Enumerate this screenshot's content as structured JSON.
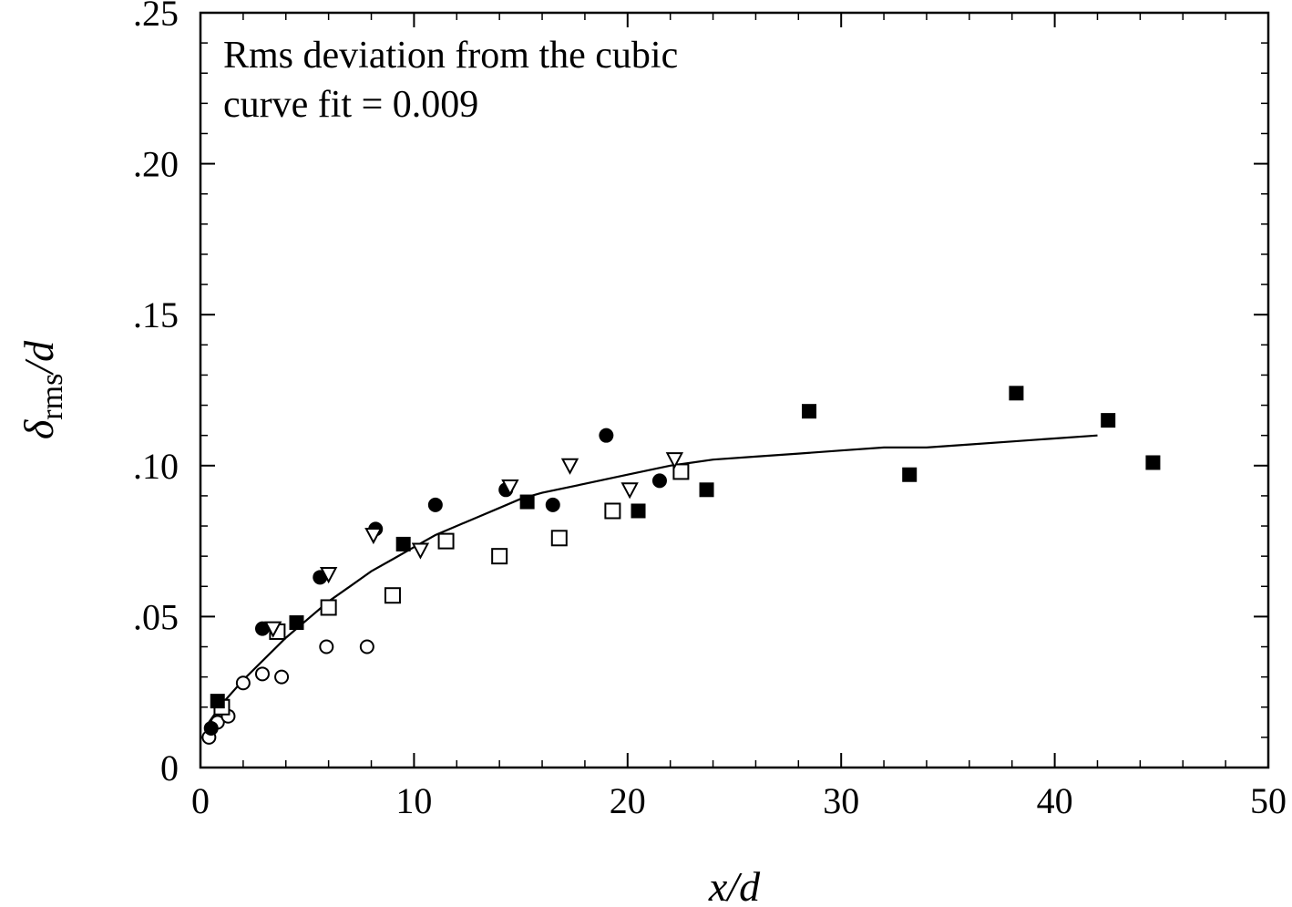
{
  "chart_data": {
    "type": "scatter",
    "annotation": [
      "Rms deviation from the cubic",
      "curve fit = 0.009"
    ],
    "xlabel": "x/d",
    "ylabel": {
      "symbol": "δ",
      "subscript": "rms",
      "suffix": "/d"
    },
    "xlim": [
      0,
      50
    ],
    "ylim": [
      0,
      0.25
    ],
    "xticks": [
      0,
      10,
      20,
      30,
      40,
      50
    ],
    "xtick_labels": [
      "0",
      "10",
      "20",
      "30",
      "40",
      "50"
    ],
    "yticks": [
      0,
      0.05,
      0.1,
      0.15,
      0.2,
      0.25
    ],
    "ytick_labels": [
      "0",
      ".05",
      ".10",
      ".15",
      ".20",
      ".25"
    ],
    "grid": false,
    "series": [
      {
        "marker": "open-circle",
        "points": [
          [
            0.4,
            0.01
          ],
          [
            0.8,
            0.015
          ],
          [
            1.3,
            0.017
          ],
          [
            2.0,
            0.028
          ],
          [
            2.9,
            0.031
          ],
          [
            3.8,
            0.03
          ],
          [
            5.9,
            0.04
          ],
          [
            7.8,
            0.04
          ]
        ]
      },
      {
        "marker": "filled-circle",
        "points": [
          [
            0.5,
            0.013
          ],
          [
            2.9,
            0.046
          ],
          [
            5.6,
            0.063
          ],
          [
            8.2,
            0.079
          ],
          [
            11.0,
            0.087
          ],
          [
            14.3,
            0.092
          ],
          [
            16.5,
            0.087
          ],
          [
            19.0,
            0.11
          ],
          [
            21.5,
            0.095
          ]
        ]
      },
      {
        "marker": "open-square",
        "points": [
          [
            1.0,
            0.02
          ],
          [
            3.6,
            0.045
          ],
          [
            6.0,
            0.053
          ],
          [
            9.0,
            0.057
          ],
          [
            11.5,
            0.075
          ],
          [
            14.0,
            0.07
          ],
          [
            16.8,
            0.076
          ],
          [
            19.3,
            0.085
          ],
          [
            22.5,
            0.098
          ]
        ]
      },
      {
        "marker": "filled-square",
        "points": [
          [
            0.8,
            0.022
          ],
          [
            4.5,
            0.048
          ],
          [
            9.5,
            0.074
          ],
          [
            15.3,
            0.088
          ],
          [
            20.5,
            0.085
          ],
          [
            23.7,
            0.092
          ],
          [
            28.5,
            0.118
          ],
          [
            33.2,
            0.097
          ],
          [
            38.2,
            0.124
          ],
          [
            42.5,
            0.115
          ],
          [
            44.6,
            0.101
          ]
        ]
      },
      {
        "marker": "open-triangle-down",
        "points": [
          [
            3.4,
            0.046
          ],
          [
            6.0,
            0.064
          ],
          [
            8.1,
            0.077
          ],
          [
            10.3,
            0.072
          ],
          [
            14.5,
            0.093
          ],
          [
            17.3,
            0.1
          ],
          [
            20.1,
            0.092
          ],
          [
            22.2,
            0.102
          ]
        ]
      }
    ],
    "fit_curve": {
      "label": "cubic curve fit",
      "x": [
        0.2,
        1,
        2,
        3,
        4,
        5,
        6,
        7,
        8,
        9,
        10,
        11,
        12,
        13,
        14,
        15,
        16,
        18,
        20,
        22,
        24,
        26,
        28,
        30,
        32,
        34,
        36,
        38,
        40,
        42
      ],
      "y": [
        0.013,
        0.021,
        0.029,
        0.036,
        0.043,
        0.049,
        0.055,
        0.06,
        0.065,
        0.069,
        0.073,
        0.077,
        0.08,
        0.083,
        0.086,
        0.089,
        0.091,
        0.094,
        0.097,
        0.1,
        0.102,
        0.103,
        0.104,
        0.105,
        0.106,
        0.106,
        0.107,
        0.108,
        0.109,
        0.11
      ]
    }
  }
}
